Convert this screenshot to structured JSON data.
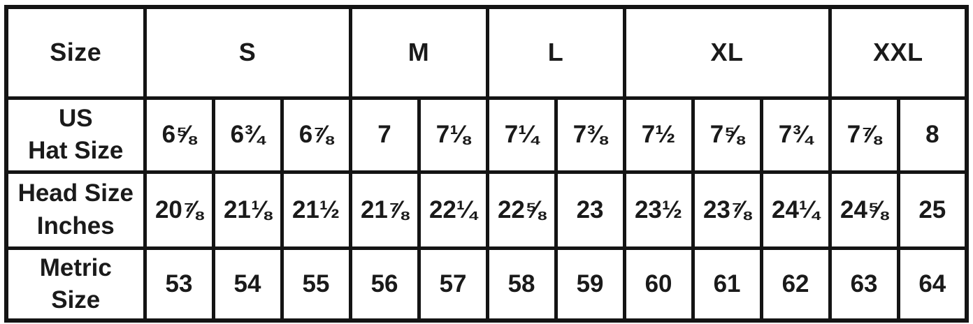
{
  "colors": {
    "line": "#141414",
    "text": "#1a1a1a",
    "background": "#ffffff"
  },
  "chart_data": {
    "type": "table",
    "corner_label": "Size",
    "size_groups": [
      {
        "label": "S",
        "span": 3
      },
      {
        "label": "M",
        "span": 2
      },
      {
        "label": "L",
        "span": 2
      },
      {
        "label": "XL",
        "span": 3
      },
      {
        "label": "XXL",
        "span": 2
      }
    ],
    "rows": [
      {
        "name": "us-hat-size",
        "label_lines": [
          "US",
          "Hat Size"
        ],
        "values": [
          "6⅝",
          "6¾",
          "6⅞",
          "7",
          "7⅛",
          "7¼",
          "7⅜",
          "7½",
          "7⅝",
          "7¾",
          "7⅞",
          "8"
        ]
      },
      {
        "name": "head-size-inches",
        "label_lines": [
          "Head Size",
          "Inches"
        ],
        "values": [
          "20⅞",
          "21⅛",
          "21½",
          "21⅞",
          "22¼",
          "22⅝",
          "23",
          "23½",
          "23⅞",
          "24¼",
          "24⅝",
          "25"
        ]
      },
      {
        "name": "metric-size",
        "label_lines": [
          "Metric",
          "Size"
        ],
        "values": [
          "53",
          "54",
          "55",
          "56",
          "57",
          "58",
          "59",
          "60",
          "61",
          "62",
          "63",
          "64"
        ]
      }
    ]
  }
}
